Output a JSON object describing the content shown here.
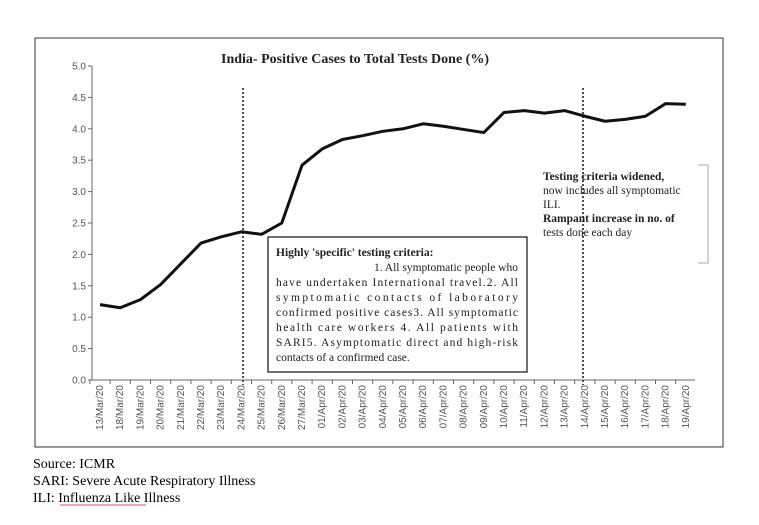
{
  "chart_data": {
    "type": "line",
    "title": "India-  Positive Cases to Total Tests Done (%)",
    "categories": [
      "13/Mar/20",
      "18/Mar/20",
      "19/Mar/20",
      "20/Mar/20",
      "21/Mar/20",
      "22/Mar/20",
      "23/Mar/20",
      "24/Mar/20",
      "25/Mar/20",
      "26/Mar/20",
      "27/Mar/20",
      "01/Apr/20",
      "02/Apr/20",
      "03/Apr/20",
      "04/Apr/20",
      "05/Apr/20",
      "06/Apr/20",
      "07/Apr/20",
      "08/Apr/20",
      "09/Apr/20",
      "10/Apr/20",
      "11/Apr/20",
      "12/Apr/20",
      "13/Apr/20",
      "14/Apr/20",
      "15/Apr/20",
      "16/Apr/20",
      "17/Apr/20",
      "18/Apr/20",
      "19/Apr/20"
    ],
    "values": [
      1.2,
      1.15,
      1.28,
      1.52,
      1.85,
      2.18,
      2.28,
      2.36,
      2.32,
      2.5,
      3.42,
      3.68,
      3.83,
      3.89,
      3.96,
      4.0,
      4.08,
      4.04,
      3.99,
      3.94,
      4.26,
      4.29,
      4.25,
      4.29,
      4.2,
      4.12,
      4.15,
      4.2,
      4.4,
      4.39
    ],
    "color": "#111111",
    "ylim": [
      0,
      5
    ],
    "yticks": [
      {
        "value": 0,
        "label": "0.0"
      },
      {
        "value": 0.5,
        "label": "0.5"
      },
      {
        "value": 1,
        "label": "1.0"
      },
      {
        "value": 1.5,
        "label": "1.5"
      },
      {
        "value": 2,
        "label": "2.0"
      },
      {
        "value": 2.5,
        "label": "2.5"
      },
      {
        "value": 3,
        "label": "3.0"
      },
      {
        "value": 3.5,
        "label": "3.5"
      },
      {
        "value": 4,
        "label": "4.0"
      },
      {
        "value": 4.5,
        "label": "4.5"
      },
      {
        "value": 5,
        "label": "5.0"
      }
    ],
    "annotations": [
      {
        "lines": [
          "Highly 'specific' testing criteria:",
          "1. All symptomatic people who",
          "have undertaken International travel.2. All",
          "symptomatic contacts of laboratory",
          "confirmed positive cases3. All symptomatic",
          "health care workers 4. All patients with",
          "SARI5. Asymptomatic direct and high-risk",
          "contacts of a confirmed case."
        ]
      },
      {
        "lines": [
          "Testing criteria widened,",
          "now includes all symptomatic",
          "ILI.",
          "Rampant increase in no. of",
          "tests done each day"
        ]
      }
    ]
  },
  "footnotes": [
    "Source: ICMR",
    "SARI: Severe Acute Respiratory Illness",
    "ILI: Influenza Like Illness"
  ]
}
